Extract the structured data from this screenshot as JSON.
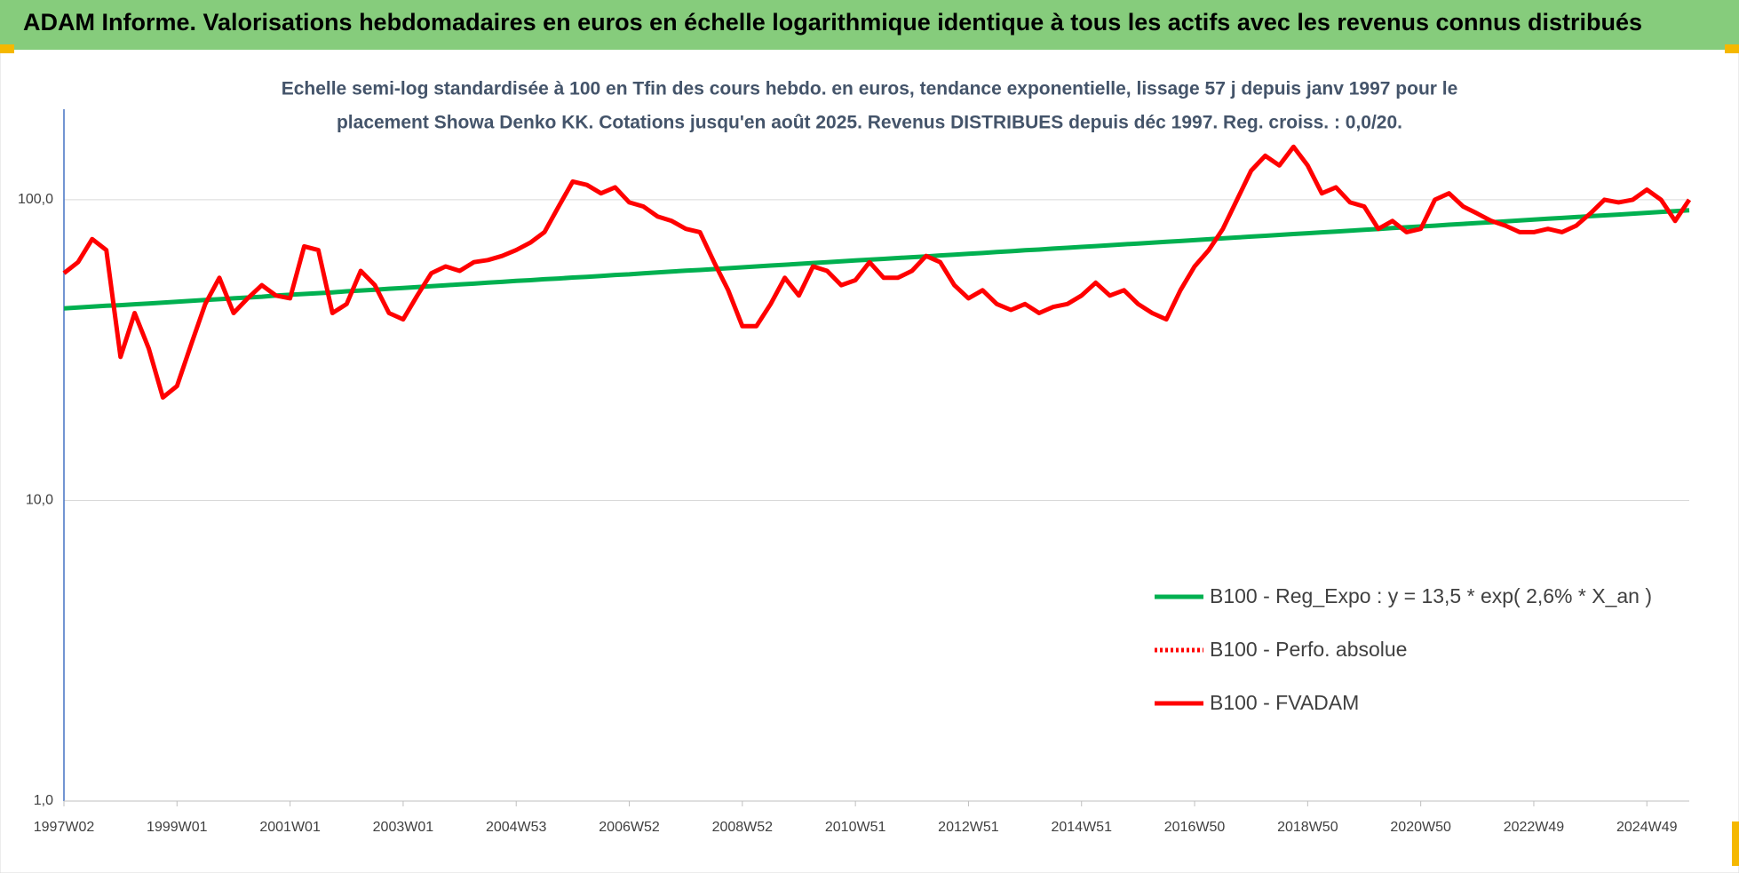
{
  "chart_data": {
    "type": "line",
    "title": "ADAM Informe. Valorisations hebdomadaires en euros en échelle logarithmique identique à tous les actifs avec les revenus connus distribués",
    "subtitle": [
      "Echelle semi-log standardisée à 100 en Tfin des cours hebdo. en euros, tendance exponentielle, lissage 57 j depuis janv 1997 pour le",
      "placement Showa Denko KK. Cotations jusqu'en août 2025. Revenus DISTRIBUES depuis déc 1997. Reg. croiss. : 0,0/20."
    ],
    "log_scale": true,
    "grid": true,
    "legend": "lower right",
    "ylim": [
      1,
      200
    ],
    "yticks": [
      {
        "value": 1,
        "label": "1,0"
      },
      {
        "value": 10,
        "label": "10,0"
      },
      {
        "value": 100,
        "label": "100,0"
      }
    ],
    "categories": [
      "1997W02",
      null,
      null,
      null,
      null,
      null,
      null,
      null,
      "1999W01",
      null,
      null,
      null,
      null,
      null,
      null,
      null,
      "2001W01",
      null,
      null,
      null,
      null,
      null,
      null,
      null,
      "2003W01",
      null,
      null,
      null,
      null,
      null,
      null,
      null,
      "2004W53",
      null,
      null,
      null,
      null,
      null,
      null,
      null,
      "2006W52",
      null,
      null,
      null,
      null,
      null,
      null,
      null,
      "2008W52",
      null,
      null,
      null,
      null,
      null,
      null,
      null,
      "2010W51",
      null,
      null,
      null,
      null,
      null,
      null,
      null,
      "2012W51",
      null,
      null,
      null,
      null,
      null,
      null,
      null,
      "2014W51",
      null,
      null,
      null,
      null,
      null,
      null,
      null,
      "2016W50",
      null,
      null,
      null,
      null,
      null,
      null,
      null,
      "2018W50",
      null,
      null,
      null,
      null,
      null,
      null,
      null,
      "2020W50",
      null,
      null,
      null,
      null,
      null,
      null,
      null,
      "2022W49",
      null,
      null,
      null,
      null,
      null,
      null,
      null,
      "2024W49",
      null,
      null,
      null
    ],
    "series": [
      {
        "name": "B100 - Reg_Expo : y = 13,5 * exp( 2,6% *  X_an )",
        "color": "#00b050",
        "dash": "solid",
        "values": [
          43.5,
          43.8,
          44.1,
          44.4,
          44.6,
          44.9,
          45.2,
          45.5,
          45.8,
          46.1,
          46.4,
          46.7,
          47.0,
          47.3,
          47.6,
          48.0,
          48.3,
          48.6,
          48.9,
          49.2,
          49.6,
          49.9,
          50.2,
          50.6,
          50.9,
          51.2,
          51.6,
          51.9,
          52.3,
          52.6,
          53.0,
          53.3,
          53.7,
          54.0,
          54.4,
          54.7,
          55.1,
          55.4,
          55.8,
          56.2,
          56.5,
          56.9,
          57.3,
          57.7,
          58.1,
          58.4,
          58.8,
          59.2,
          59.6,
          60.0,
          60.4,
          60.8,
          61.2,
          61.6,
          62.0,
          62.4,
          62.8,
          63.2,
          63.6,
          64.0,
          64.4,
          64.8,
          65.3,
          65.7,
          66.1,
          66.5,
          67.0,
          67.4,
          67.9,
          68.3,
          68.8,
          69.2,
          69.7,
          70.1,
          70.6,
          71.1,
          71.5,
          72.0,
          72.5,
          72.9,
          73.4,
          73.9,
          74.4,
          74.9,
          75.4,
          75.9,
          76.4,
          76.9,
          77.4,
          77.9,
          78.4,
          78.9,
          79.4,
          79.9,
          80.5,
          81.0,
          81.5,
          82.0,
          82.6,
          83.1,
          83.7,
          84.2,
          84.8,
          85.3,
          85.9,
          86.5,
          87.0,
          87.6,
          88.2,
          88.7,
          89.3,
          89.9,
          90.5,
          91.1,
          91.7,
          92.3
        ]
      },
      {
        "name": "B100 - Perfo. absolue",
        "color": "#ff0000",
        "dash": "dotted"
      },
      {
        "name": "B100 - FVADAM",
        "color": "#ff0000",
        "dash": "solid",
        "values": [
          57,
          62,
          74,
          68,
          30,
          42,
          32,
          22,
          24,
          33,
          45,
          55,
          42,
          47,
          52,
          48,
          47,
          70,
          68,
          42,
          45,
          58,
          52,
          42,
          40,
          48,
          57,
          60,
          58,
          62,
          63,
          65,
          68,
          72,
          78,
          95,
          115,
          112,
          105,
          110,
          98,
          95,
          88,
          85,
          80,
          78,
          62,
          50,
          38,
          38,
          45,
          55,
          48,
          60,
          58,
          52,
          54,
          62,
          55,
          55,
          58,
          65,
          62,
          52,
          47,
          50,
          45,
          43,
          45,
          42,
          44,
          45,
          48,
          53,
          48,
          50,
          45,
          42,
          40,
          50,
          60,
          68,
          80,
          100,
          125,
          140,
          130,
          150,
          130,
          105,
          110,
          98,
          95,
          80,
          85,
          78,
          80,
          100,
          105,
          95,
          90,
          85,
          82,
          78,
          78,
          80,
          78,
          82,
          90,
          100,
          98,
          100,
          108,
          100,
          85,
          100
        ]
      }
    ]
  }
}
